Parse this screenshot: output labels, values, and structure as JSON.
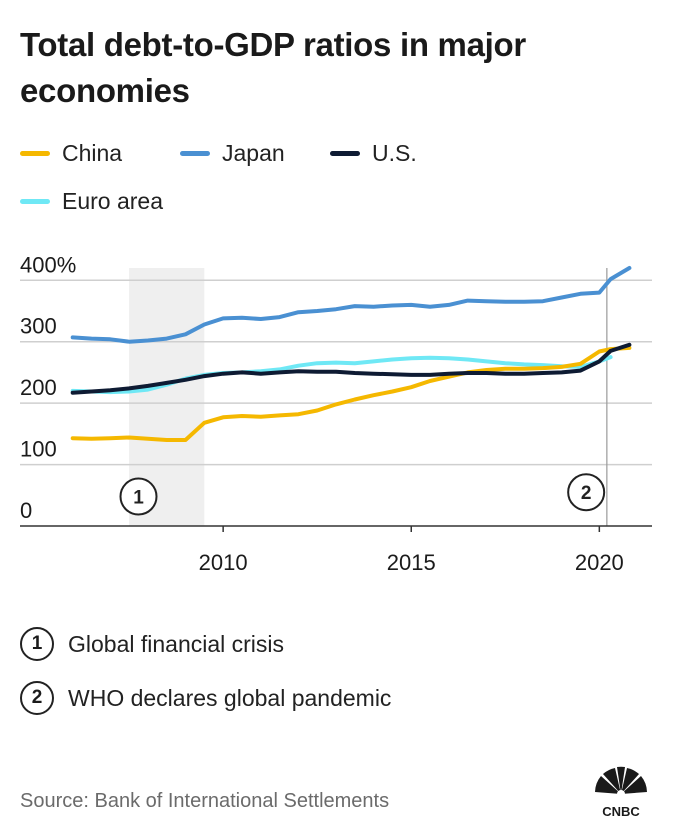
{
  "title": "Total debt-to-GDP ratios in major economies",
  "legend": [
    {
      "name": "China",
      "color": "#f5b800"
    },
    {
      "name": "Japan",
      "color": "#4a90d2"
    },
    {
      "name": "U.S.",
      "color": "#0e1b33"
    },
    {
      "name": "Euro area",
      "color": "#6fe8f5"
    }
  ],
  "notes": [
    {
      "num": "1",
      "text": "Global financial crisis"
    },
    {
      "num": "2",
      "text": "WHO declares global pandemic"
    }
  ],
  "source": "Source: Bank of International Settlements",
  "logo": {
    "text": "CNBC"
  },
  "chart_data": {
    "type": "line",
    "ylim": [
      0,
      420
    ],
    "xlim": [
      2004.6,
      2021.4
    ],
    "yticks": [
      0,
      100,
      200,
      300,
      400
    ],
    "ytick_labels": [
      "0",
      "100",
      "200",
      "300",
      "400%"
    ],
    "xticks": [
      2010,
      2015,
      2020
    ],
    "xtick_labels": [
      "2010",
      "2015",
      "2020"
    ],
    "shaded_period": {
      "start": 2007.5,
      "end": 2009.5
    },
    "markers": [
      {
        "label": "1",
        "x": 2007.75,
        "y": 48
      },
      {
        "label": "2",
        "x": 2019.65,
        "y": 55
      }
    ],
    "vline": 2020.2,
    "series": [
      {
        "name": "China",
        "color": "#f5b800",
        "x": [
          2006,
          2006.5,
          2007,
          2007.5,
          2008,
          2008.5,
          2009,
          2009.5,
          2010,
          2010.5,
          2011,
          2011.5,
          2012,
          2012.5,
          2013,
          2013.5,
          2014,
          2014.5,
          2015,
          2015.5,
          2016,
          2016.5,
          2017,
          2017.5,
          2018,
          2018.5,
          2019,
          2019.5,
          2020,
          2020.3,
          2020.8
        ],
        "y": [
          143,
          142,
          143,
          144,
          142,
          140,
          140,
          168,
          177,
          179,
          178,
          180,
          182,
          188,
          198,
          206,
          213,
          219,
          226,
          236,
          243,
          250,
          254,
          256,
          256,
          257,
          259,
          264,
          284,
          288,
          290
        ]
      },
      {
        "name": "Japan",
        "color": "#4a90d2",
        "x": [
          2006,
          2006.5,
          2007,
          2007.5,
          2008,
          2008.5,
          2009,
          2009.5,
          2010,
          2010.5,
          2011,
          2011.5,
          2012,
          2012.5,
          2013,
          2013.5,
          2014,
          2014.5,
          2015,
          2015.5,
          2016,
          2016.5,
          2017,
          2017.5,
          2018,
          2018.5,
          2019,
          2019.5,
          2020,
          2020.3,
          2020.8
        ],
        "y": [
          307,
          305,
          304,
          300,
          302,
          305,
          312,
          328,
          338,
          339,
          337,
          340,
          348,
          350,
          353,
          358,
          357,
          359,
          360,
          357,
          360,
          367,
          366,
          365,
          365,
          366,
          372,
          378,
          380,
          402,
          420
        ]
      },
      {
        "name": "U.S.",
        "color": "#0e1b33",
        "x": [
          2006,
          2006.5,
          2007,
          2007.5,
          2008,
          2008.5,
          2009,
          2009.5,
          2010,
          2010.5,
          2011,
          2011.5,
          2012,
          2012.5,
          2013,
          2013.5,
          2014,
          2014.5,
          2015,
          2015.5,
          2016,
          2016.5,
          2017,
          2017.5,
          2018,
          2018.5,
          2019,
          2019.5,
          2020,
          2020.3,
          2020.8
        ],
        "y": [
          217,
          219,
          221,
          224,
          228,
          233,
          238,
          244,
          248,
          250,
          248,
          250,
          252,
          251,
          251,
          249,
          248,
          247,
          246,
          246,
          248,
          249,
          249,
          248,
          248,
          249,
          250,
          253,
          268,
          285,
          295
        ]
      },
      {
        "name": "Euro area",
        "color": "#6fe8f5",
        "x": [
          2006,
          2006.5,
          2007,
          2007.5,
          2008,
          2008.5,
          2009,
          2009.5,
          2010,
          2010.5,
          2011,
          2011.5,
          2012,
          2012.5,
          2013,
          2013.5,
          2014,
          2014.5,
          2015,
          2015.5,
          2016,
          2016.5,
          2017,
          2017.5,
          2018,
          2018.5,
          2019,
          2019.5,
          2020,
          2020.3
        ],
        "y": [
          220,
          219,
          218,
          219,
          222,
          230,
          240,
          246,
          249,
          250,
          252,
          255,
          261,
          265,
          266,
          265,
          268,
          271,
          273,
          274,
          273,
          271,
          268,
          265,
          263,
          262,
          260,
          259,
          268,
          275
        ]
      }
    ]
  }
}
